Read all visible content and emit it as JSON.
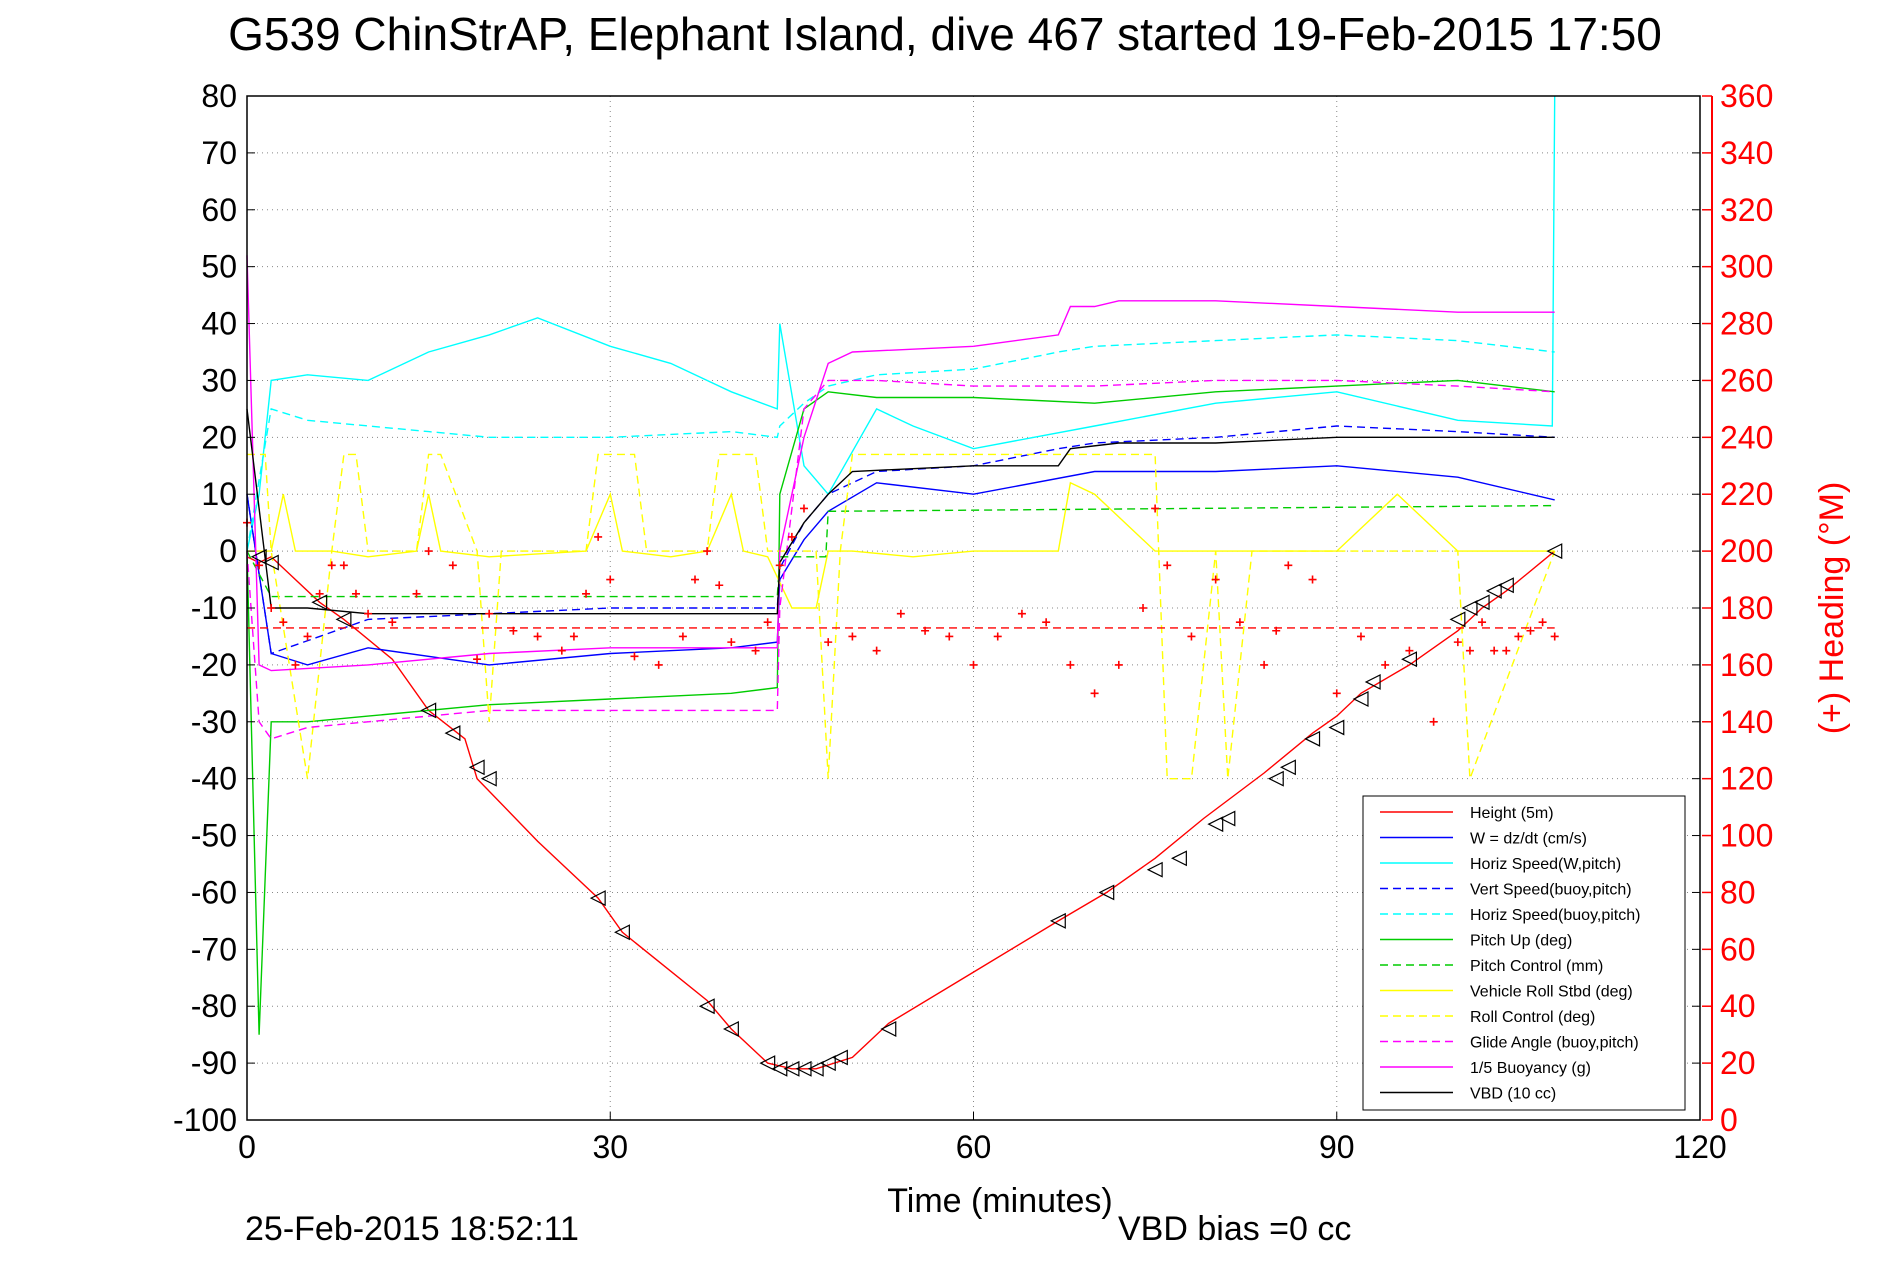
{
  "chart_data": {
    "type": "line",
    "title": "G539 ChinStrAP, Elephant Island, dive 467 started 19-Feb-2015 17:50",
    "xlabel": "Time (minutes)",
    "ylabel_right": "(+) Heading (°M)",
    "xlim": [
      0,
      120
    ],
    "ylim": [
      -100,
      80
    ],
    "ylim_right": [
      0,
      360
    ],
    "x_ticks": [
      "0",
      "30",
      "60",
      "90",
      "120"
    ],
    "y_ticks": [
      "80",
      "70",
      "60",
      "50",
      "40",
      "30",
      "20",
      "10",
      "0",
      "-10",
      "-20",
      "-30",
      "-40",
      "-50",
      "-60",
      "-70",
      "-80",
      "-90",
      "-100"
    ],
    "y_ticks_right": [
      "360",
      "340",
      "320",
      "300",
      "280",
      "260",
      "240",
      "220",
      "200",
      "180",
      "160",
      "140",
      "120",
      "100",
      "80",
      "60",
      "40",
      "20",
      "0"
    ],
    "grid": true,
    "legend_position": "bottom-right",
    "footer_left": "25-Feb-2015 18:52:11",
    "footer_right": "VBD bias =0 cc",
    "series": [
      {
        "name": "Height (5m)",
        "color": "#ff0000",
        "style": "solid",
        "x": [
          0,
          1,
          2,
          6,
          8,
          12,
          15,
          18,
          19,
          24,
          29,
          31,
          38,
          40,
          43,
          45,
          47,
          50,
          53,
          60,
          67,
          71,
          75,
          79,
          84,
          88,
          90,
          92,
          96,
          100,
          102,
          104,
          108
        ],
        "y": [
          -1,
          -2,
          -1,
          -9,
          -12,
          -19,
          -28,
          -33,
          -40,
          -51,
          -61,
          -67,
          -79,
          -84,
          -90,
          -91,
          -91,
          -89,
          -83,
          -74,
          -65,
          -60,
          -54,
          -47,
          -39,
          -32,
          -29,
          -25,
          -20,
          -14,
          -10,
          -7,
          0
        ]
      },
      {
        "name": "W = dz/dt (cm/s)",
        "color": "#0000ff",
        "style": "solid",
        "x": [
          0,
          2,
          5,
          10,
          20,
          30,
          40,
          43.8,
          44,
          46,
          48,
          52,
          60,
          70,
          80,
          90,
          100,
          108
        ],
        "y": [
          10,
          -18,
          -20,
          -17,
          -20,
          -18,
          -17,
          -16,
          -5,
          2,
          7,
          12,
          10,
          14,
          14,
          15,
          13,
          9
        ]
      },
      {
        "name": "Horiz Speed(W,pitch)",
        "color": "#00ffff",
        "style": "solid",
        "x": [
          0,
          1,
          2,
          5,
          10,
          15,
          20,
          24,
          30,
          35,
          40,
          43.8,
          44,
          46,
          48,
          52,
          55,
          60,
          65,
          70,
          80,
          90,
          100,
          107.8,
          108
        ],
        "y": [
          0,
          10,
          30,
          31,
          30,
          35,
          38,
          41,
          36,
          33,
          28,
          25,
          40,
          15,
          10,
          25,
          22,
          18,
          20,
          22,
          26,
          28,
          23,
          22,
          80
        ]
      },
      {
        "name": "Vert Speed(buoy,pitch)",
        "color": "#0000ff",
        "style": "dashed",
        "x": [
          0,
          2,
          10,
          20,
          30,
          43.8,
          44,
          46,
          48,
          52,
          60,
          67,
          70,
          80,
          90,
          100,
          108
        ],
        "y": [
          10,
          -18,
          -12,
          -11,
          -10,
          -10,
          -3,
          5,
          10,
          14,
          15,
          18,
          19,
          20,
          22,
          21,
          20
        ]
      },
      {
        "name": "Horiz Speed(buoy,pitch)",
        "color": "#00ffff",
        "style": "dashed",
        "x": [
          0,
          2,
          5,
          15,
          20,
          30,
          40,
          43.8,
          44,
          46,
          48,
          52,
          60,
          67,
          70,
          80,
          90,
          100,
          108
        ],
        "y": [
          0,
          25,
          23,
          21,
          20,
          20,
          21,
          20,
          22,
          26,
          29,
          31,
          32,
          35,
          36,
          37,
          38,
          37,
          35
        ]
      },
      {
        "name": "Pitch Up (deg)",
        "color": "#00cc00",
        "style": "solid",
        "x": [
          0,
          1,
          2,
          5,
          10,
          20,
          30,
          40,
          43.8,
          44,
          46,
          48,
          52,
          60,
          70,
          80,
          90,
          100,
          108
        ],
        "y": [
          0,
          -85,
          -30,
          -30,
          -29,
          -27,
          -26,
          -25,
          -24,
          10,
          25,
          28,
          27,
          27,
          26,
          28,
          29,
          30,
          28
        ]
      },
      {
        "name": "Pitch Control (mm)",
        "color": "#00cc00",
        "style": "dashed",
        "x": [
          0,
          2,
          43.8,
          44,
          47.8,
          48,
          108
        ],
        "y": [
          0,
          -8,
          -8,
          -1,
          -1,
          7,
          8
        ]
      },
      {
        "name": "Vehicle Roll Stbd (deg)",
        "color": "#ffff00",
        "style": "solid",
        "x": [
          0,
          2,
          3,
          4,
          5,
          7,
          10,
          14,
          15,
          16,
          20,
          28,
          30,
          31,
          35,
          38,
          40,
          41,
          43,
          45,
          47,
          48,
          50,
          55,
          60,
          67,
          68,
          70,
          75,
          80,
          85,
          90,
          95,
          100,
          105,
          108
        ],
        "y": [
          0,
          0,
          10,
          0,
          0,
          0,
          -1,
          0,
          10,
          0,
          -1,
          0,
          10,
          0,
          -1,
          0,
          10,
          0,
          -1,
          -10,
          -10,
          0,
          0,
          -1,
          0,
          0,
          12,
          10,
          0,
          0,
          0,
          0,
          10,
          0,
          0,
          0
        ]
      },
      {
        "name": "Roll Control (deg)",
        "color": "#ffff00",
        "style": "dashed",
        "x": [
          0,
          1.5,
          2,
          5,
          7,
          8,
          9,
          10,
          14,
          15,
          16,
          19,
          20,
          21,
          28,
          29,
          32,
          33,
          38,
          39,
          42,
          43,
          47,
          48,
          49,
          50,
          75,
          76,
          78,
          80,
          81,
          83,
          100,
          101,
          108
        ],
        "y": [
          17,
          17,
          0,
          -40,
          0,
          17,
          17,
          0,
          0,
          17,
          17,
          0,
          -30,
          0,
          0,
          17,
          17,
          0,
          0,
          17,
          17,
          0,
          0,
          -40,
          0,
          17,
          17,
          -40,
          -40,
          0,
          -40,
          0,
          0,
          -40,
          0
        ]
      },
      {
        "name": "Glide Angle (buoy,pitch)",
        "color": "#ff00ff",
        "style": "dashed",
        "x": [
          0,
          1,
          2,
          5,
          10,
          20,
          30,
          43.8,
          44,
          46,
          48,
          52,
          60,
          70,
          80,
          90,
          100,
          108
        ],
        "y": [
          0,
          -30,
          -33,
          -31,
          -30,
          -28,
          -28,
          -28,
          -10,
          25,
          30,
          30,
          29,
          29,
          30,
          30,
          29,
          28
        ]
      },
      {
        "name": "1/5 Buoyancy (g)",
        "color": "#ff00ff",
        "style": "solid",
        "x": [
          0,
          1,
          2,
          10,
          20,
          30,
          43.8,
          44,
          46,
          48,
          50,
          60,
          67,
          68,
          70,
          72,
          80,
          90,
          100,
          108
        ],
        "y": [
          52,
          -20,
          -21,
          -20,
          -18,
          -17,
          -17,
          0,
          20,
          33,
          35,
          36,
          38,
          43,
          43,
          44,
          44,
          43,
          42,
          42
        ]
      },
      {
        "name": "VBD (10 cc)",
        "color": "#000000",
        "style": "solid",
        "x": [
          0,
          2,
          5,
          10,
          20,
          30,
          43.8,
          44,
          46,
          48,
          50,
          60,
          67,
          68,
          72,
          80,
          90,
          100,
          108
        ],
        "y": [
          25,
          -10,
          -10,
          -11,
          -11,
          -11,
          -11,
          -2,
          5,
          10,
          14,
          15,
          15,
          18,
          19,
          19,
          20,
          20,
          20
        ]
      }
    ],
    "heading_series": {
      "name": "(+) Heading",
      "axis": "right",
      "marker": "+",
      "color": "#ff0000",
      "x": [
        0,
        1,
        2,
        3,
        4,
        5,
        6,
        7,
        8,
        9,
        10,
        12,
        14,
        15,
        17,
        19,
        20,
        22,
        24,
        26,
        27,
        28,
        29,
        30,
        32,
        34,
        36,
        37,
        38,
        39,
        40,
        42,
        43,
        44,
        45,
        46,
        48,
        50,
        52,
        54,
        56,
        58,
        60,
        62,
        64,
        66,
        68,
        70,
        72,
        74,
        75,
        76,
        78,
        80,
        82,
        84,
        85,
        86,
        88,
        90,
        92,
        94,
        96,
        98,
        100,
        101,
        102,
        103,
        104,
        105,
        106,
        107,
        108
      ],
      "y": [
        210,
        195,
        180,
        175,
        160,
        170,
        185,
        195,
        195,
        185,
        178,
        175,
        185,
        200,
        195,
        162,
        178,
        172,
        170,
        165,
        170,
        185,
        205,
        190,
        163,
        160,
        170,
        190,
        200,
        188,
        168,
        165,
        175,
        195,
        205,
        215,
        168,
        170,
        165,
        178,
        172,
        170,
        160,
        170,
        178,
        175,
        160,
        150,
        160,
        180,
        215,
        195,
        170,
        190,
        175,
        160,
        172,
        195,
        190,
        150,
        170,
        160,
        165,
        140,
        168,
        165,
        175,
        165,
        165,
        170,
        172,
        175,
        170
      ]
    },
    "heading_mean": {
      "name": "mean heading",
      "axis": "right",
      "style": "dashed",
      "color": "#ff0000",
      "x": [
        0,
        108
      ],
      "y": [
        173,
        173
      ]
    },
    "triangle_markers": {
      "x": [
        1,
        2,
        6,
        8,
        15,
        17,
        19,
        20,
        29,
        31,
        38,
        40,
        43,
        44,
        45,
        46,
        47,
        48,
        49,
        53,
        67,
        71,
        75,
        77,
        80,
        81,
        85,
        86,
        88,
        90,
        92,
        93,
        96,
        100,
        101,
        102,
        103,
        104,
        108
      ],
      "y": [
        -1,
        -2,
        -9,
        -12,
        -28,
        -32,
        -38,
        -40,
        -61,
        -67,
        -80,
        -84,
        -90,
        -91,
        -91,
        -91,
        -91,
        -90,
        -89,
        -84,
        -65,
        -60,
        -56,
        -54,
        -48,
        -47,
        -40,
        -38,
        -33,
        -31,
        -26,
        -23,
        -19,
        -12,
        -10,
        -9,
        -7,
        -6,
        0
      ]
    }
  }
}
